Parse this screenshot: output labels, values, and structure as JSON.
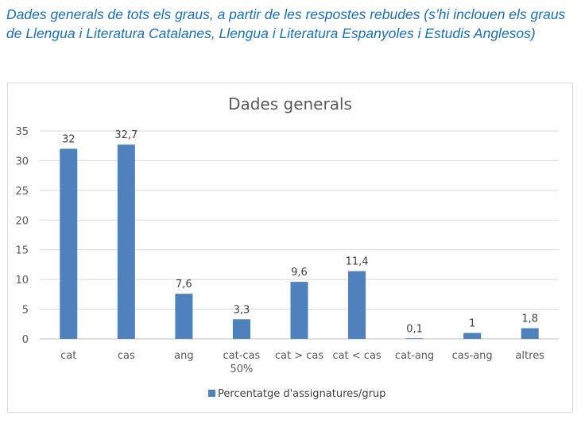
{
  "caption": "Dades generals de tots els graus, a partir de les respostes rebudes (s’hi inclouen els graus de Llengua i Literatura Catalanes, Llengua i Literatura Espanyoles i Estudis Anglesos)",
  "colors": {
    "bar": "#4f81bd",
    "caption": "#1b6fb8",
    "grid": "#d9d9d9"
  },
  "chart_data": {
    "type": "bar",
    "title": "Dades generals",
    "categories": [
      "cat",
      "cas",
      "ang",
      "cat-cas 50%",
      "cat > cas",
      "cat < cas",
      "cat-ang",
      "cas-ang",
      "altres"
    ],
    "category_lines": [
      [
        "cat"
      ],
      [
        "cas"
      ],
      [
        "ang"
      ],
      [
        "cat-cas",
        "50%"
      ],
      [
        "cat > cas"
      ],
      [
        "cat < cas"
      ],
      [
        "cat-ang"
      ],
      [
        "cas-ang"
      ],
      [
        "altres"
      ]
    ],
    "series": [
      {
        "name": "Percentatge d'assignatures/grup",
        "values": [
          32,
          32.7,
          7.6,
          3.3,
          9.6,
          11.4,
          0.1,
          1,
          1.8
        ]
      }
    ],
    "data_labels": [
      "32",
      "32,7",
      "7,6",
      "3,3",
      "9,6",
      "11,4",
      "0,1",
      "1",
      "1,8"
    ],
    "ylim": [
      0,
      35
    ],
    "yticks": [
      0,
      5,
      10,
      15,
      20,
      25,
      30,
      35
    ],
    "grid": true,
    "legend": "bottom",
    "xlabel": "",
    "ylabel": ""
  }
}
